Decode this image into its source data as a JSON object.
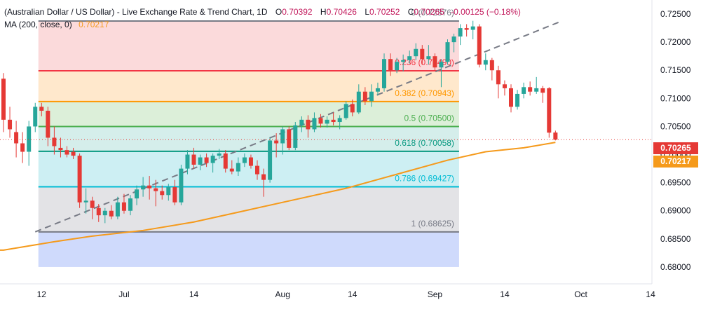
{
  "header": {
    "symbol": "(Australian Dollar / US Dollar) - Live Exchange Rate & Trend Chart, 1D",
    "open_label": "O",
    "open": "0.70392",
    "high_label": "H",
    "high": "0.70426",
    "low_label": "L",
    "low": "0.70252",
    "close_label": "C",
    "close": "0.70265",
    "change": "-0.00125 (−0.18%)",
    "ma_label": "MA (200, close, 0)",
    "ma_value": "0.70217"
  },
  "price_tags": {
    "last": "0.70265",
    "ma": "0.70217"
  },
  "colors": {
    "up": "#26a69a",
    "down": "#e53935",
    "ma": "#f59a1b",
    "grid_line": "#d1d4dc"
  },
  "chart_data": {
    "type": "candlestick",
    "y_axis": {
      "min": 0.677,
      "max": 0.7275,
      "ticks": [
        "0.72500",
        "0.72000",
        "0.71500",
        "0.71000",
        "0.70500",
        "0.70000",
        "0.69500",
        "0.69000",
        "0.68500",
        "0.68000"
      ],
      "tick_values": [
        0.725,
        0.72,
        0.715,
        0.71,
        0.705,
        0.7,
        0.695,
        0.69,
        0.685,
        0.68
      ]
    },
    "x_axis": {
      "labels": [
        "12",
        "Jul",
        "14",
        "Aug",
        "14",
        "Sep",
        "14",
        "Oct",
        "14"
      ],
      "label_bars": [
        6,
        19,
        30,
        44,
        55,
        68,
        79,
        91,
        102
      ]
    },
    "candles": [
      {
        "o": 0.7135,
        "h": 0.7145,
        "l": 0.704,
        "c": 0.7062
      },
      {
        "o": 0.7062,
        "h": 0.7085,
        "l": 0.703,
        "c": 0.7045
      },
      {
        "o": 0.704,
        "h": 0.706,
        "l": 0.6995,
        "c": 0.702
      },
      {
        "o": 0.702,
        "h": 0.704,
        "l": 0.6985,
        "c": 0.7005
      },
      {
        "o": 0.7005,
        "h": 0.706,
        "l": 0.698,
        "c": 0.705
      },
      {
        "o": 0.705,
        "h": 0.7092,
        "l": 0.704,
        "c": 0.7085
      },
      {
        "o": 0.7085,
        "h": 0.7092,
        "l": 0.7068,
        "c": 0.7078
      },
      {
        "o": 0.7078,
        "h": 0.7085,
        "l": 0.7015,
        "c": 0.703
      },
      {
        "o": 0.703,
        "h": 0.705,
        "l": 0.7,
        "c": 0.7015
      },
      {
        "o": 0.7012,
        "h": 0.703,
        "l": 0.6995,
        "c": 0.7008
      },
      {
        "o": 0.7008,
        "h": 0.7015,
        "l": 0.6995,
        "c": 0.7
      },
      {
        "o": 0.7005,
        "h": 0.7012,
        "l": 0.6992,
        "c": 0.6998
      },
      {
        "o": 0.6998,
        "h": 0.7002,
        "l": 0.6905,
        "c": 0.6915
      },
      {
        "o": 0.6915,
        "h": 0.694,
        "l": 0.6895,
        "c": 0.6918
      },
      {
        "o": 0.6918,
        "h": 0.6925,
        "l": 0.6885,
        "c": 0.6905
      },
      {
        "o": 0.6905,
        "h": 0.6912,
        "l": 0.688,
        "c": 0.6892
      },
      {
        "o": 0.6892,
        "h": 0.6905,
        "l": 0.6878,
        "c": 0.69
      },
      {
        "o": 0.69,
        "h": 0.691,
        "l": 0.6885,
        "c": 0.689
      },
      {
        "o": 0.689,
        "h": 0.6925,
        "l": 0.6885,
        "c": 0.6915
      },
      {
        "o": 0.6915,
        "h": 0.693,
        "l": 0.6895,
        "c": 0.69
      },
      {
        "o": 0.69,
        "h": 0.6928,
        "l": 0.6892,
        "c": 0.6922
      },
      {
        "o": 0.6922,
        "h": 0.6945,
        "l": 0.691,
        "c": 0.6938
      },
      {
        "o": 0.6938,
        "h": 0.696,
        "l": 0.6925,
        "c": 0.6945
      },
      {
        "o": 0.6945,
        "h": 0.6962,
        "l": 0.692,
        "c": 0.694
      },
      {
        "o": 0.694,
        "h": 0.6955,
        "l": 0.6908,
        "c": 0.6935
      },
      {
        "o": 0.6935,
        "h": 0.6945,
        "l": 0.692,
        "c": 0.6928
      },
      {
        "o": 0.6928,
        "h": 0.6948,
        "l": 0.6918,
        "c": 0.6942
      },
      {
        "o": 0.6942,
        "h": 0.6955,
        "l": 0.691,
        "c": 0.6915
      },
      {
        "o": 0.6915,
        "h": 0.6982,
        "l": 0.691,
        "c": 0.6975
      },
      {
        "o": 0.6975,
        "h": 0.7008,
        "l": 0.6965,
        "c": 0.7
      },
      {
        "o": 0.7,
        "h": 0.7012,
        "l": 0.6975,
        "c": 0.6982
      },
      {
        "o": 0.6982,
        "h": 0.7,
        "l": 0.6972,
        "c": 0.6995
      },
      {
        "o": 0.6995,
        "h": 0.7002,
        "l": 0.6978,
        "c": 0.6985
      },
      {
        "o": 0.6985,
        "h": 0.7002,
        "l": 0.6968,
        "c": 0.6998
      },
      {
        "o": 0.6998,
        "h": 0.701,
        "l": 0.6992,
        "c": 0.7002
      },
      {
        "o": 0.7002,
        "h": 0.7008,
        "l": 0.6968,
        "c": 0.6975
      },
      {
        "o": 0.6975,
        "h": 0.699,
        "l": 0.6965,
        "c": 0.697
      },
      {
        "o": 0.697,
        "h": 0.6995,
        "l": 0.6962,
        "c": 0.6985
      },
      {
        "o": 0.6985,
        "h": 0.7002,
        "l": 0.6978,
        "c": 0.6995
      },
      {
        "o": 0.6995,
        "h": 0.7,
        "l": 0.6975,
        "c": 0.698
      },
      {
        "o": 0.698,
        "h": 0.699,
        "l": 0.6955,
        "c": 0.6965
      },
      {
        "o": 0.6965,
        "h": 0.6975,
        "l": 0.6925,
        "c": 0.6955
      },
      {
        "o": 0.6955,
        "h": 0.703,
        "l": 0.695,
        "c": 0.7025
      },
      {
        "o": 0.7025,
        "h": 0.7038,
        "l": 0.6995,
        "c": 0.702
      },
      {
        "o": 0.702,
        "h": 0.705,
        "l": 0.7,
        "c": 0.7045
      },
      {
        "o": 0.7045,
        "h": 0.705,
        "l": 0.7008,
        "c": 0.7012
      },
      {
        "o": 0.7012,
        "h": 0.7058,
        "l": 0.7008,
        "c": 0.7052
      },
      {
        "o": 0.7052,
        "h": 0.7068,
        "l": 0.704,
        "c": 0.7062
      },
      {
        "o": 0.7062,
        "h": 0.707,
        "l": 0.703,
        "c": 0.7045
      },
      {
        "o": 0.7045,
        "h": 0.7075,
        "l": 0.704,
        "c": 0.7065
      },
      {
        "o": 0.7065,
        "h": 0.7072,
        "l": 0.7048,
        "c": 0.7055
      },
      {
        "o": 0.7055,
        "h": 0.7068,
        "l": 0.7048,
        "c": 0.7062
      },
      {
        "o": 0.7062,
        "h": 0.7075,
        "l": 0.7052,
        "c": 0.7058
      },
      {
        "o": 0.7058,
        "h": 0.707,
        "l": 0.7045,
        "c": 0.7065
      },
      {
        "o": 0.7065,
        "h": 0.7095,
        "l": 0.7062,
        "c": 0.709
      },
      {
        "o": 0.709,
        "h": 0.7098,
        "l": 0.7068,
        "c": 0.7075
      },
      {
        "o": 0.7075,
        "h": 0.7125,
        "l": 0.7072,
        "c": 0.7112
      },
      {
        "o": 0.7112,
        "h": 0.712,
        "l": 0.7088,
        "c": 0.7095
      },
      {
        "o": 0.7095,
        "h": 0.7125,
        "l": 0.7085,
        "c": 0.7112
      },
      {
        "o": 0.7112,
        "h": 0.7128,
        "l": 0.7105,
        "c": 0.7118
      },
      {
        "o": 0.7118,
        "h": 0.718,
        "l": 0.7112,
        "c": 0.717
      },
      {
        "o": 0.717,
        "h": 0.718,
        "l": 0.714,
        "c": 0.715
      },
      {
        "o": 0.715,
        "h": 0.7172,
        "l": 0.7145,
        "c": 0.7165
      },
      {
        "o": 0.7165,
        "h": 0.7178,
        "l": 0.7148,
        "c": 0.7168
      },
      {
        "o": 0.7168,
        "h": 0.7185,
        "l": 0.7162,
        "c": 0.7175
      },
      {
        "o": 0.7175,
        "h": 0.7198,
        "l": 0.7168,
        "c": 0.7188
      },
      {
        "o": 0.7188,
        "h": 0.7195,
        "l": 0.716,
        "c": 0.717
      },
      {
        "o": 0.717,
        "h": 0.7195,
        "l": 0.716,
        "c": 0.7175
      },
      {
        "o": 0.7175,
        "h": 0.718,
        "l": 0.7148,
        "c": 0.7155
      },
      {
        "o": 0.7155,
        "h": 0.717,
        "l": 0.712,
        "c": 0.7165
      },
      {
        "o": 0.7165,
        "h": 0.7205,
        "l": 0.716,
        "c": 0.72
      },
      {
        "o": 0.72,
        "h": 0.7215,
        "l": 0.7182,
        "c": 0.721
      },
      {
        "o": 0.721,
        "h": 0.7232,
        "l": 0.7195,
        "c": 0.7225
      },
      {
        "o": 0.7225,
        "h": 0.7232,
        "l": 0.721,
        "c": 0.7222
      },
      {
        "o": 0.7222,
        "h": 0.7238,
        "l": 0.7205,
        "c": 0.7228
      },
      {
        "o": 0.7228,
        "h": 0.7232,
        "l": 0.7155,
        "c": 0.716
      },
      {
        "o": 0.716,
        "h": 0.718,
        "l": 0.715,
        "c": 0.7168
      },
      {
        "o": 0.7168,
        "h": 0.7172,
        "l": 0.7132,
        "c": 0.715
      },
      {
        "o": 0.715,
        "h": 0.7158,
        "l": 0.71,
        "c": 0.7125
      },
      {
        "o": 0.7125,
        "h": 0.7132,
        "l": 0.7105,
        "c": 0.7118
      },
      {
        "o": 0.7118,
        "h": 0.7125,
        "l": 0.7075,
        "c": 0.7085
      },
      {
        "o": 0.7085,
        "h": 0.7115,
        "l": 0.708,
        "c": 0.7108
      },
      {
        "o": 0.7108,
        "h": 0.7128,
        "l": 0.71,
        "c": 0.712
      },
      {
        "o": 0.712,
        "h": 0.713,
        "l": 0.7105,
        "c": 0.7112
      },
      {
        "o": 0.7112,
        "h": 0.7138,
        "l": 0.7108,
        "c": 0.7118
      },
      {
        "o": 0.7118,
        "h": 0.7122,
        "l": 0.7092,
        "c": 0.711
      },
      {
        "o": 0.7118,
        "h": 0.712,
        "l": 0.703,
        "c": 0.7039
      },
      {
        "o": 0.70392,
        "h": 0.70426,
        "l": 0.70252,
        "c": 0.70265
      }
    ],
    "ma200": [
      [
        0,
        0.683
      ],
      [
        8,
        0.6845
      ],
      [
        14,
        0.6855
      ],
      [
        22,
        0.6865
      ],
      [
        30,
        0.688
      ],
      [
        38,
        0.69
      ],
      [
        46,
        0.692
      ],
      [
        54,
        0.694
      ],
      [
        62,
        0.6965
      ],
      [
        70,
        0.699
      ],
      [
        76,
        0.7005
      ],
      [
        82,
        0.7012
      ],
      [
        87,
        0.70217
      ]
    ],
    "fibonacci": {
      "levels": [
        {
          "ratio": "0",
          "value": "0.72376",
          "y": 0.72376,
          "color": "#787b86",
          "fill": "#fbdadb"
        },
        {
          "ratio": "0.236",
          "value": "0.71490",
          "y": 0.7149,
          "color": "#f23645",
          "fill": "#ffe8cc"
        },
        {
          "ratio": "0.382",
          "value": "0.70943",
          "y": 0.70943,
          "color": "#ff9800",
          "fill": "#dcefd9"
        },
        {
          "ratio": "0.5",
          "value": "0.70500",
          "y": 0.705,
          "color": "#4caf50",
          "fill": "#d5eeeb"
        },
        {
          "ratio": "0.618",
          "value": "0.70058",
          "y": 0.70058,
          "color": "#089981",
          "fill": "#cdeff3"
        },
        {
          "ratio": "0.786",
          "value": "0.69427",
          "y": 0.69427,
          "color": "#00bcd4",
          "fill": "#e3e3e6"
        },
        {
          "ratio": "1",
          "value": "0.68625",
          "y": 0.68625,
          "color": "#787b86",
          "fill": "#cfdafc"
        }
      ],
      "extension_bottom": 0.68,
      "start_bar": 5.5,
      "end_bar": 68.5
    },
    "trend_line": {
      "from": [
        5,
        0.68625
      ],
      "to": [
        88,
        0.72376
      ]
    },
    "grid": false
  }
}
